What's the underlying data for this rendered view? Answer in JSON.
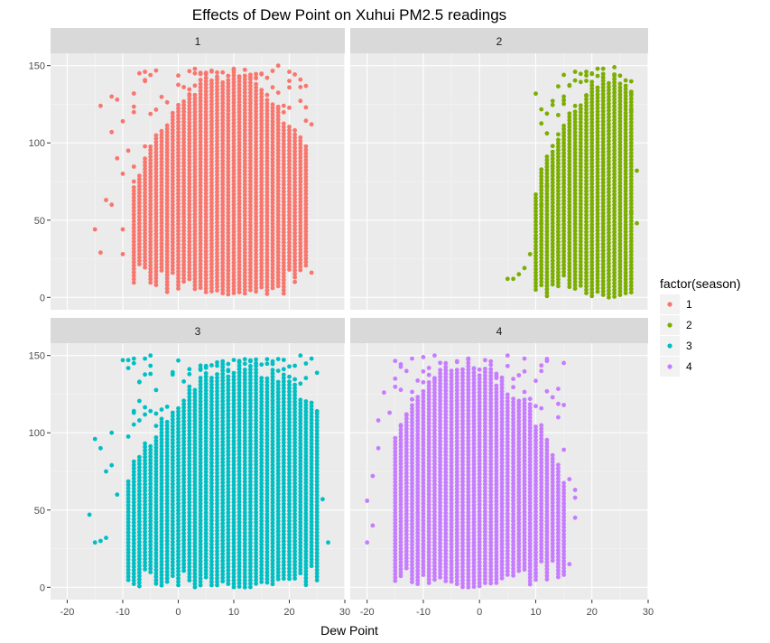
{
  "chart_data": {
    "type": "scatter",
    "title": "Effects of Dew Point on Xuhui PM2.5 readings",
    "xlabel": "Dew Point",
    "ylabel": "",
    "xlim": [
      -23,
      30
    ],
    "ylim": [
      -8,
      158
    ],
    "x_ticks": [
      -20,
      -10,
      0,
      10,
      20,
      30
    ],
    "y_ticks": [
      0,
      50,
      100,
      150
    ],
    "grid": true,
    "legend": {
      "title": "factor(season)",
      "position": "right"
    },
    "facets": [
      {
        "label": "1",
        "color": "#F8766D",
        "x_range": [
          -15,
          24
        ],
        "y_range": [
          2,
          150
        ],
        "points": [
          [
            -14,
            124
          ],
          [
            -13,
            63
          ],
          [
            -12,
            60
          ],
          [
            -12,
            107
          ],
          [
            -12,
            130
          ],
          [
            -11,
            90
          ],
          [
            -11,
            128
          ],
          [
            -10,
            114
          ],
          [
            -10,
            80
          ],
          [
            -10,
            28
          ],
          [
            -10,
            44
          ],
          [
            -9,
            95
          ],
          [
            -8,
            75
          ],
          [
            -8,
            132
          ],
          [
            -7,
            145
          ],
          [
            -6,
            140
          ],
          [
            -6,
            146
          ],
          [
            -15,
            44
          ],
          [
            -14,
            29
          ],
          [
            24,
            112
          ],
          [
            24,
            16
          ],
          [
            23,
            123
          ],
          [
            22,
            141
          ],
          [
            20,
            146
          ],
          [
            18,
            150
          ],
          [
            21,
            10
          ]
        ],
        "dense": {
          "x": [
            -8,
            23
          ],
          "y": [
            2,
            148
          ],
          "peak_x": 9
        }
      },
      {
        "label": "2",
        "color": "#7CAE00",
        "x_range": [
          5,
          28
        ],
        "y_range": [
          0,
          149
        ],
        "points": [
          [
            5,
            12
          ],
          [
            6,
            12
          ],
          [
            7,
            15
          ],
          [
            8,
            19
          ],
          [
            9,
            28
          ],
          [
            10,
            38
          ],
          [
            11,
            48
          ],
          [
            11,
            60
          ],
          [
            12,
            72
          ],
          [
            13,
            85
          ],
          [
            13,
            98
          ],
          [
            14,
            118
          ],
          [
            15,
            130
          ],
          [
            16,
            137
          ],
          [
            17,
            146
          ],
          [
            19,
            146
          ],
          [
            21,
            148
          ],
          [
            22,
            148
          ],
          [
            24,
            149
          ],
          [
            27,
            121
          ],
          [
            27,
            132
          ],
          [
            28,
            82
          ],
          [
            28,
            48
          ],
          [
            27,
            55
          ]
        ],
        "dense": {
          "x": [
            10,
            27
          ],
          "y": [
            0,
            145
          ],
          "peak_x": 23
        }
      },
      {
        "label": "3",
        "color": "#00BFC4",
        "x_range": [
          -16,
          27
        ],
        "y_range": [
          0,
          150
        ],
        "points": [
          [
            -16,
            47
          ],
          [
            -15,
            96
          ],
          [
            -15,
            29
          ],
          [
            -14,
            30
          ],
          [
            -14,
            90
          ],
          [
            -13,
            32
          ],
          [
            -13,
            75
          ],
          [
            -12,
            79
          ],
          [
            -12,
            100
          ],
          [
            -11,
            60
          ],
          [
            -10,
            147
          ],
          [
            -9,
            147
          ],
          [
            -8,
            145
          ],
          [
            -8,
            148
          ],
          [
            -6,
            148
          ],
          [
            -5,
            150
          ],
          [
            -7,
            133
          ],
          [
            26,
            57
          ],
          [
            25,
            114
          ],
          [
            27,
            29
          ],
          [
            24,
            148
          ],
          [
            22,
            150
          ]
        ],
        "dense": {
          "x": [
            -9,
            25
          ],
          "y": [
            0,
            148
          ],
          "peak_x": 12
        }
      },
      {
        "label": "4",
        "color": "#C77CFF",
        "x_range": [
          -20,
          17
        ],
        "y_range": [
          0,
          150
        ],
        "points": [
          [
            -20,
            56
          ],
          [
            -20,
            29
          ],
          [
            -19,
            40
          ],
          [
            -19,
            72
          ],
          [
            -18,
            90
          ],
          [
            -18,
            108
          ],
          [
            -17,
            126
          ],
          [
            -16,
            113
          ],
          [
            -15,
            135
          ],
          [
            -14,
            105
          ],
          [
            -13,
            140
          ],
          [
            -12,
            148
          ],
          [
            -10,
            149
          ],
          [
            -8,
            150
          ],
          [
            5,
            150
          ],
          [
            8,
            148
          ],
          [
            11,
            140
          ],
          [
            13,
            123
          ],
          [
            14,
            110
          ],
          [
            15,
            89
          ],
          [
            16,
            70
          ],
          [
            17,
            58
          ],
          [
            17,
            45
          ],
          [
            16,
            15
          ],
          [
            15,
            10
          ],
          [
            17,
            63
          ]
        ],
        "dense": {
          "x": [
            -15,
            15
          ],
          "y": [
            0,
            148
          ],
          "peak_x": -2
        }
      }
    ]
  }
}
